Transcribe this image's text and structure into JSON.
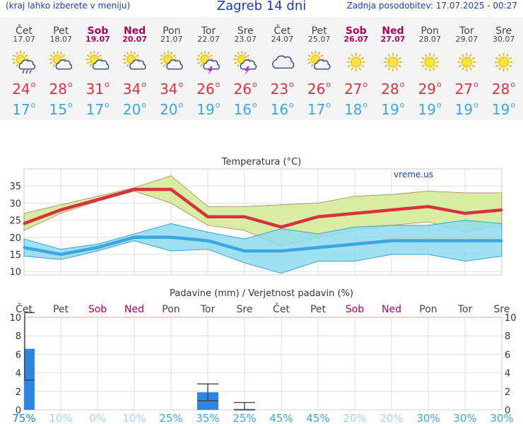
{
  "header": {
    "menu_hint": "(kraj lahko izberete v meniju)",
    "title": "Zagreb 14 dni",
    "updated": "Zadnja posodobitev: 17.07.2025 - 00:27"
  },
  "colors": {
    "title_blue": "#1a3dbd",
    "weekday": "#444444",
    "weekend": "#b0005a",
    "max_temp": "#d9323f",
    "min_temp": "#3aa7e0",
    "max_band": "#d6ec9c",
    "min_band": "#8fdcee",
    "precip_bar": "#2f86e0"
  },
  "days": [
    {
      "name": "Čet",
      "date": "17.07",
      "weekend": false,
      "icon": "sun-cloud-rain-icon",
      "max": 24,
      "min": 17,
      "max_hi": 27,
      "max_lo": 22,
      "min_hi": 19.5,
      "min_lo": 14.5,
      "precip": 6.6,
      "precip_lo": 3.2,
      "precip_hi": 10.5,
      "prob": "75%"
    },
    {
      "name": "Pet",
      "date": "18.07",
      "weekend": false,
      "icon": "sun-cloud-icon",
      "max": 28,
      "min": 15,
      "max_hi": 29.5,
      "max_lo": 27,
      "min_hi": 16.5,
      "min_lo": 13.5,
      "precip": 0,
      "precip_lo": null,
      "precip_hi": null,
      "prob": "10%"
    },
    {
      "name": "Sob",
      "date": "19.07",
      "weekend": true,
      "icon": "sun-small-cloud-icon",
      "max": 31,
      "min": 17,
      "max_hi": 32,
      "max_lo": 30.5,
      "min_hi": 18,
      "min_lo": 16,
      "precip": 0,
      "precip_lo": null,
      "precip_hi": null,
      "prob": "0%"
    },
    {
      "name": "Ned",
      "date": "20.07",
      "weekend": true,
      "icon": "sun-small-cloud-icon",
      "max": 34,
      "min": 20,
      "max_hi": 34.5,
      "max_lo": 33.5,
      "min_hi": 21,
      "min_lo": 19,
      "precip": 0,
      "precip_lo": null,
      "precip_hi": null,
      "prob": "10%"
    },
    {
      "name": "Pon",
      "date": "21.07",
      "weekend": false,
      "icon": "sun-small-cloud-icon",
      "max": 34,
      "min": 20,
      "max_hi": 38,
      "max_lo": 30,
      "min_hi": 24,
      "min_lo": 16,
      "precip": 0,
      "precip_lo": null,
      "precip_hi": null,
      "prob": "25%"
    },
    {
      "name": "Tor",
      "date": "22.07",
      "weekend": false,
      "icon": "sun-cloud-storm-icon",
      "max": 26,
      "min": 19,
      "max_hi": 29,
      "max_lo": 23.5,
      "min_hi": 21.5,
      "min_lo": 16.5,
      "precip": 1.9,
      "precip_lo": 1,
      "precip_hi": 2.8,
      "prob": "35%"
    },
    {
      "name": "Sre",
      "date": "23.07",
      "weekend": false,
      "icon": "sun-cloud-storm-icon",
      "max": 26,
      "min": 16,
      "max_hi": 29,
      "max_lo": 22,
      "min_hi": 19.5,
      "min_lo": 12.5,
      "precip": 0.1,
      "precip_lo": 0,
      "precip_hi": 0.8,
      "prob": "25%"
    },
    {
      "name": "Čet",
      "date": "24.07",
      "weekend": false,
      "icon": "cloud-icon",
      "max": 23,
      "min": 16,
      "max_hi": 29.5,
      "max_lo": 17.5,
      "min_hi": 22.5,
      "min_lo": 9.5,
      "precip": 0,
      "precip_lo": null,
      "precip_hi": null,
      "prob": "45%"
    },
    {
      "name": "Pet",
      "date": "25.07",
      "weekend": false,
      "icon": "sun-small-cloud-icon",
      "max": 26,
      "min": 17,
      "max_hi": 30,
      "max_lo": 20,
      "min_hi": 21,
      "min_lo": 13,
      "precip": 0,
      "precip_lo": null,
      "precip_hi": null,
      "prob": "45%"
    },
    {
      "name": "Sob",
      "date": "26.07",
      "weekend": true,
      "icon": "sun-icon",
      "max": 27,
      "min": 18,
      "max_hi": 32,
      "max_lo": 22,
      "min_hi": 23,
      "min_lo": 13,
      "precip": 0,
      "precip_lo": null,
      "precip_hi": null,
      "prob": "20%"
    },
    {
      "name": "Ned",
      "date": "27.07",
      "weekend": true,
      "icon": "sun-icon",
      "max": 28,
      "min": 19,
      "max_hi": 32.5,
      "max_lo": 23.5,
      "min_hi": 23.5,
      "min_lo": 15,
      "precip": 0,
      "precip_lo": null,
      "precip_hi": null,
      "prob": "20%"
    },
    {
      "name": "Pon",
      "date": "28.07",
      "weekend": false,
      "icon": "sun-icon",
      "max": 29,
      "min": 19,
      "max_hi": 33.5,
      "max_lo": 24.5,
      "min_hi": 23.5,
      "min_lo": 15,
      "precip": 0,
      "precip_lo": null,
      "precip_hi": null,
      "prob": "30%"
    },
    {
      "name": "Tor",
      "date": "29.07",
      "weekend": false,
      "icon": "sun-icon",
      "max": 27,
      "min": 19,
      "max_hi": 33,
      "max_lo": 21.5,
      "min_hi": 25,
      "min_lo": 13,
      "precip": 0,
      "precip_lo": null,
      "precip_hi": null,
      "prob": "30%"
    },
    {
      "name": "Sre",
      "date": "30.07",
      "weekend": false,
      "icon": "sun-icon",
      "max": 28,
      "min": 19,
      "max_hi": 33,
      "max_lo": 23.5,
      "min_hi": 24,
      "min_lo": 14.5,
      "precip": 0,
      "precip_lo": null,
      "precip_hi": null,
      "prob": "30%"
    }
  ],
  "chart_data": [
    {
      "type": "line",
      "title": "Temperatura (°C)",
      "watermark": "vreme.us",
      "ylim": [
        9,
        40
      ],
      "yticks": [
        10,
        15,
        20,
        25,
        30,
        35
      ],
      "grid": true,
      "categories": [
        "Čet",
        "Pet",
        "Sob",
        "Ned",
        "Pon",
        "Tor",
        "Sre",
        "Čet",
        "Pet",
        "Sob",
        "Ned",
        "Pon",
        "Tor",
        "Sre"
      ],
      "series": [
        {
          "values": [
            24,
            28,
            31,
            34,
            34,
            26,
            26,
            23,
            26,
            27,
            28,
            29,
            27,
            28
          ]
        },
        {
          "values": [
            17,
            15,
            17,
            20,
            20,
            19,
            16,
            16,
            17,
            18,
            19,
            19,
            19,
            19
          ]
        }
      ]
    },
    {
      "type": "bar",
      "title": "Padavine (mm) / Verjetnost padavin (%)",
      "ylim": [
        0,
        10
      ],
      "yticks": [
        0,
        2,
        4,
        6,
        8,
        10
      ],
      "grid": true,
      "categories": [
        "Čet",
        "Pet",
        "Sob",
        "Ned",
        "Pon",
        "Tor",
        "Sre",
        "Čet",
        "Pet",
        "Sob",
        "Ned",
        "Pon",
        "Tor",
        "Sre"
      ],
      "values": [
        6.6,
        0,
        0,
        0,
        0,
        1.9,
        0.1,
        0,
        0,
        0,
        0,
        0,
        0,
        0
      ],
      "probabilities": [
        "75%",
        "10%",
        "0%",
        "10%",
        "25%",
        "35%",
        "25%",
        "45%",
        "45%",
        "20%",
        "20%",
        "30%",
        "30%",
        "30%"
      ]
    }
  ]
}
